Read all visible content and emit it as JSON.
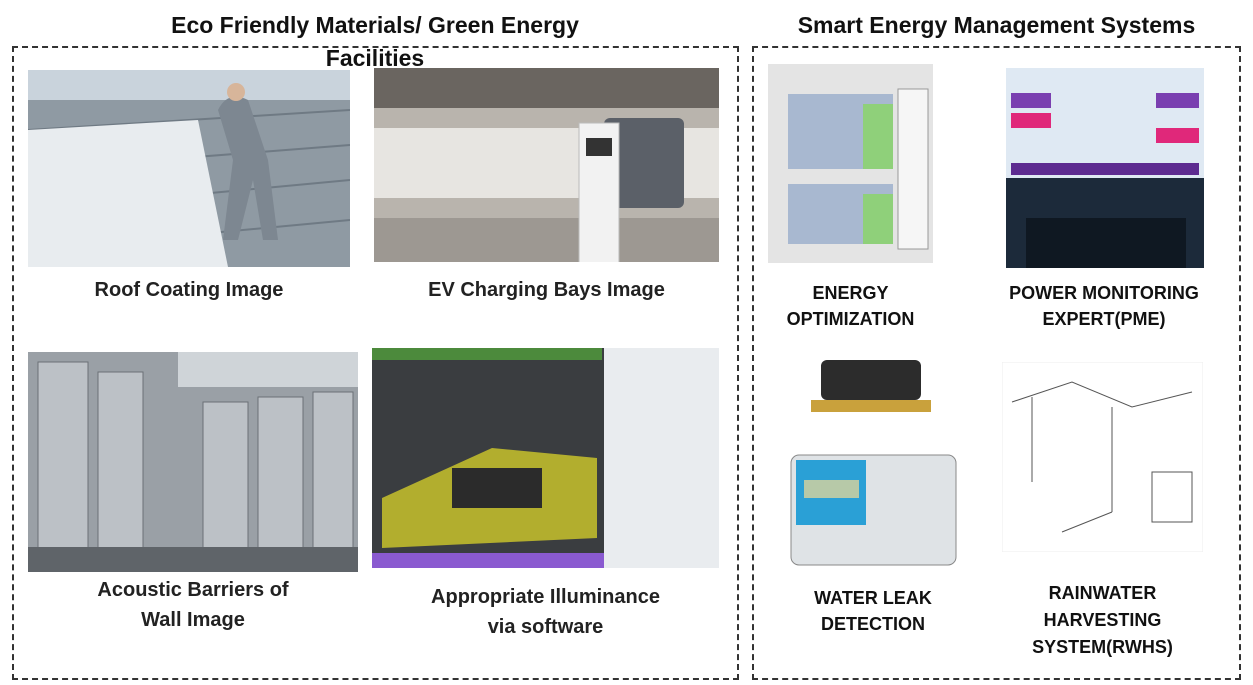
{
  "left": {
    "title": [
      "Eco Friendly Materials/ Green Energy",
      "Facilities"
    ],
    "items": [
      {
        "caption": [
          "Roof Coating Image"
        ]
      },
      {
        "caption": [
          "EV Charging Bays Image"
        ]
      },
      {
        "caption": [
          "Acoustic Barriers of",
          "Wall Image"
        ]
      },
      {
        "caption": [
          "Appropriate Illuminance",
          "via software"
        ]
      }
    ]
  },
  "right": {
    "title": "Smart Energy Management Systems",
    "items": [
      {
        "caption": [
          "ENERGY",
          "OPTIMIZATION"
        ]
      },
      {
        "caption": [
          "POWER MONITORING",
          "EXPERT(PME)"
        ]
      },
      {
        "caption": [
          "WATER LEAK",
          "DETECTION"
        ]
      },
      {
        "caption": [
          "RAINWATER",
          "HARVESTING",
          "SYSTEM(RWHS)"
        ]
      }
    ]
  }
}
